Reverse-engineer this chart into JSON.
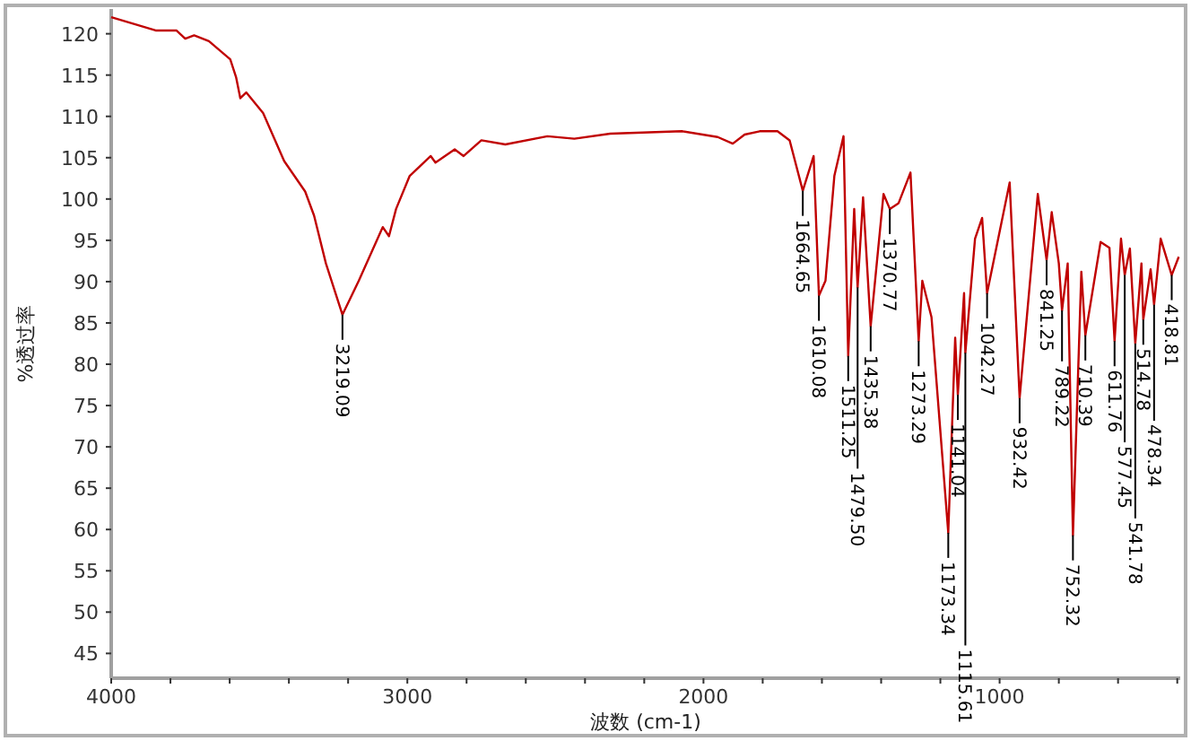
{
  "chart_data": {
    "type": "line",
    "xlabel": "波数 (cm-1)",
    "ylabel": "%透过率",
    "marker": "none",
    "grid": false,
    "x": [
      4000,
      3850,
      3780,
      3750,
      3720,
      3670,
      3598,
      3578,
      3564,
      3544,
      3487,
      3416,
      3345,
      3315,
      3275,
      3219.09,
      3164,
      3083,
      3062,
      3038,
      2992,
      2921,
      2905,
      2840,
      2810,
      2750,
      2669,
      2527,
      2436,
      2315,
      2073,
      1952,
      1901,
      1861,
      1810,
      1750,
      1709,
      1664.65,
      1628,
      1610.08,
      1588,
      1558,
      1527,
      1511.25,
      1491,
      1479.5,
      1461,
      1435.38,
      1392,
      1370.77,
      1341,
      1301,
      1273.29,
      1261,
      1230,
      1173.34,
      1150,
      1141.04,
      1120,
      1115.61,
      1083,
      1059,
      1042.27,
      966,
      932.42,
      871,
      841.25,
      824,
      800,
      789.22,
      770,
      752.32,
      724,
      710.39,
      659,
      629,
      611.76,
      590,
      577.45,
      560,
      541.78,
      521,
      514.78,
      490,
      478.34,
      456,
      418.81,
      395
    ],
    "series": [
      {
        "color": "#c00000",
        "values": [
          122,
          120.4,
          120.4,
          119.4,
          119.8,
          119.1,
          116.9,
          114.7,
          112.2,
          112.9,
          110.4,
          104.6,
          100.9,
          98,
          92.2,
          86,
          90.1,
          96.6,
          95.5,
          98.8,
          102.8,
          105.2,
          104.4,
          106,
          105.2,
          107.1,
          106.6,
          107.6,
          107.3,
          107.9,
          108.2,
          107.5,
          106.7,
          107.8,
          108.2,
          108.2,
          107.1,
          101,
          105.2,
          88.3,
          90.1,
          102.8,
          107.6,
          81,
          98.8,
          89.3,
          100.2,
          84.6,
          100.6,
          98.8,
          99.5,
          103.2,
          82.8,
          90.1,
          85.7,
          59.6,
          83.2,
          76.3,
          88.6,
          81.4,
          95.2,
          97.7,
          88.6,
          102,
          75.9,
          100.6,
          92.6,
          98.4,
          92.2,
          86.5,
          92.2,
          59.3,
          91.2,
          83.5,
          94.8,
          94.1,
          82.8,
          95.2,
          90.8,
          94,
          82.5,
          92.2,
          85.4,
          91.5,
          87.2,
          95.2,
          90.8,
          93
        ]
      }
    ],
    "xlim": [
      4000,
      390
    ],
    "xticks": [
      4000,
      {
        "value": 3800,
        "label": null
      },
      {
        "value": 3600,
        "label": null
      },
      {
        "value": 3400,
        "label": null
      },
      {
        "value": 3200,
        "label": null
      },
      3000,
      {
        "value": 2800,
        "label": null
      },
      {
        "value": 2600,
        "label": null
      },
      {
        "value": 2400,
        "label": null
      },
      {
        "value": 2200,
        "label": null
      },
      2000,
      {
        "value": 1800,
        "label": null
      },
      {
        "value": 1600,
        "label": null
      },
      {
        "value": 1400,
        "label": null
      },
      {
        "value": 1200,
        "label": null
      },
      1000,
      {
        "value": 800,
        "label": null
      },
      {
        "value": 600,
        "label": null
      },
      {
        "value": 400,
        "label": null
      }
    ],
    "ylim": [
      42,
      123
    ],
    "yticks": [
      45,
      50,
      55,
      60,
      65,
      70,
      75,
      80,
      85,
      90,
      95,
      100,
      105,
      110,
      115,
      120
    ],
    "annotations": [
      {
        "text": "3219.09",
        "x": 3219.09,
        "y": 86
      },
      {
        "text": "1664.65",
        "x": 1664.65,
        "y": 101
      },
      {
        "text": "1610.08",
        "x": 1610.08,
        "y": 88.3
      },
      {
        "text": "1511.25",
        "x": 1511.25,
        "y": 81
      },
      {
        "text": "1479.50",
        "x": 1479.5,
        "y": 89.3
      },
      {
        "text": "1435.38",
        "x": 1435.38,
        "y": 84.6
      },
      {
        "text": "1370.77",
        "x": 1370.77,
        "y": 98.8
      },
      {
        "text": "1273.29",
        "x": 1273.29,
        "y": 82.8
      },
      {
        "text": "1173.34",
        "x": 1173.34,
        "y": 59.6
      },
      {
        "text": "1141.04",
        "x": 1141.04,
        "y": 76.3
      },
      {
        "text": "1115.61",
        "x": 1115.61,
        "y": 81.4
      },
      {
        "text": "1042.27",
        "x": 1042.27,
        "y": 88.6
      },
      {
        "text": "932.42",
        "x": 932.42,
        "y": 75.9
      },
      {
        "text": "841.25",
        "x": 841.25,
        "y": 92.6
      },
      {
        "text": "789.22",
        "x": 789.22,
        "y": 86.5
      },
      {
        "text": "752.32",
        "x": 752.32,
        "y": 59.3
      },
      {
        "text": "710.39",
        "x": 710.39,
        "y": 83.5
      },
      {
        "text": "611.76",
        "x": 611.76,
        "y": 82.8
      },
      {
        "text": "577.45",
        "x": 577.45,
        "y": 90.8
      },
      {
        "text": "541.78",
        "x": 541.78,
        "y": 82.5
      },
      {
        "text": "514.78",
        "x": 514.78,
        "y": 85.4
      },
      {
        "text": "478.34",
        "x": 478.34,
        "y": 87.2
      },
      {
        "text": "418.81",
        "x": 418.81,
        "y": 90.8
      }
    ]
  }
}
